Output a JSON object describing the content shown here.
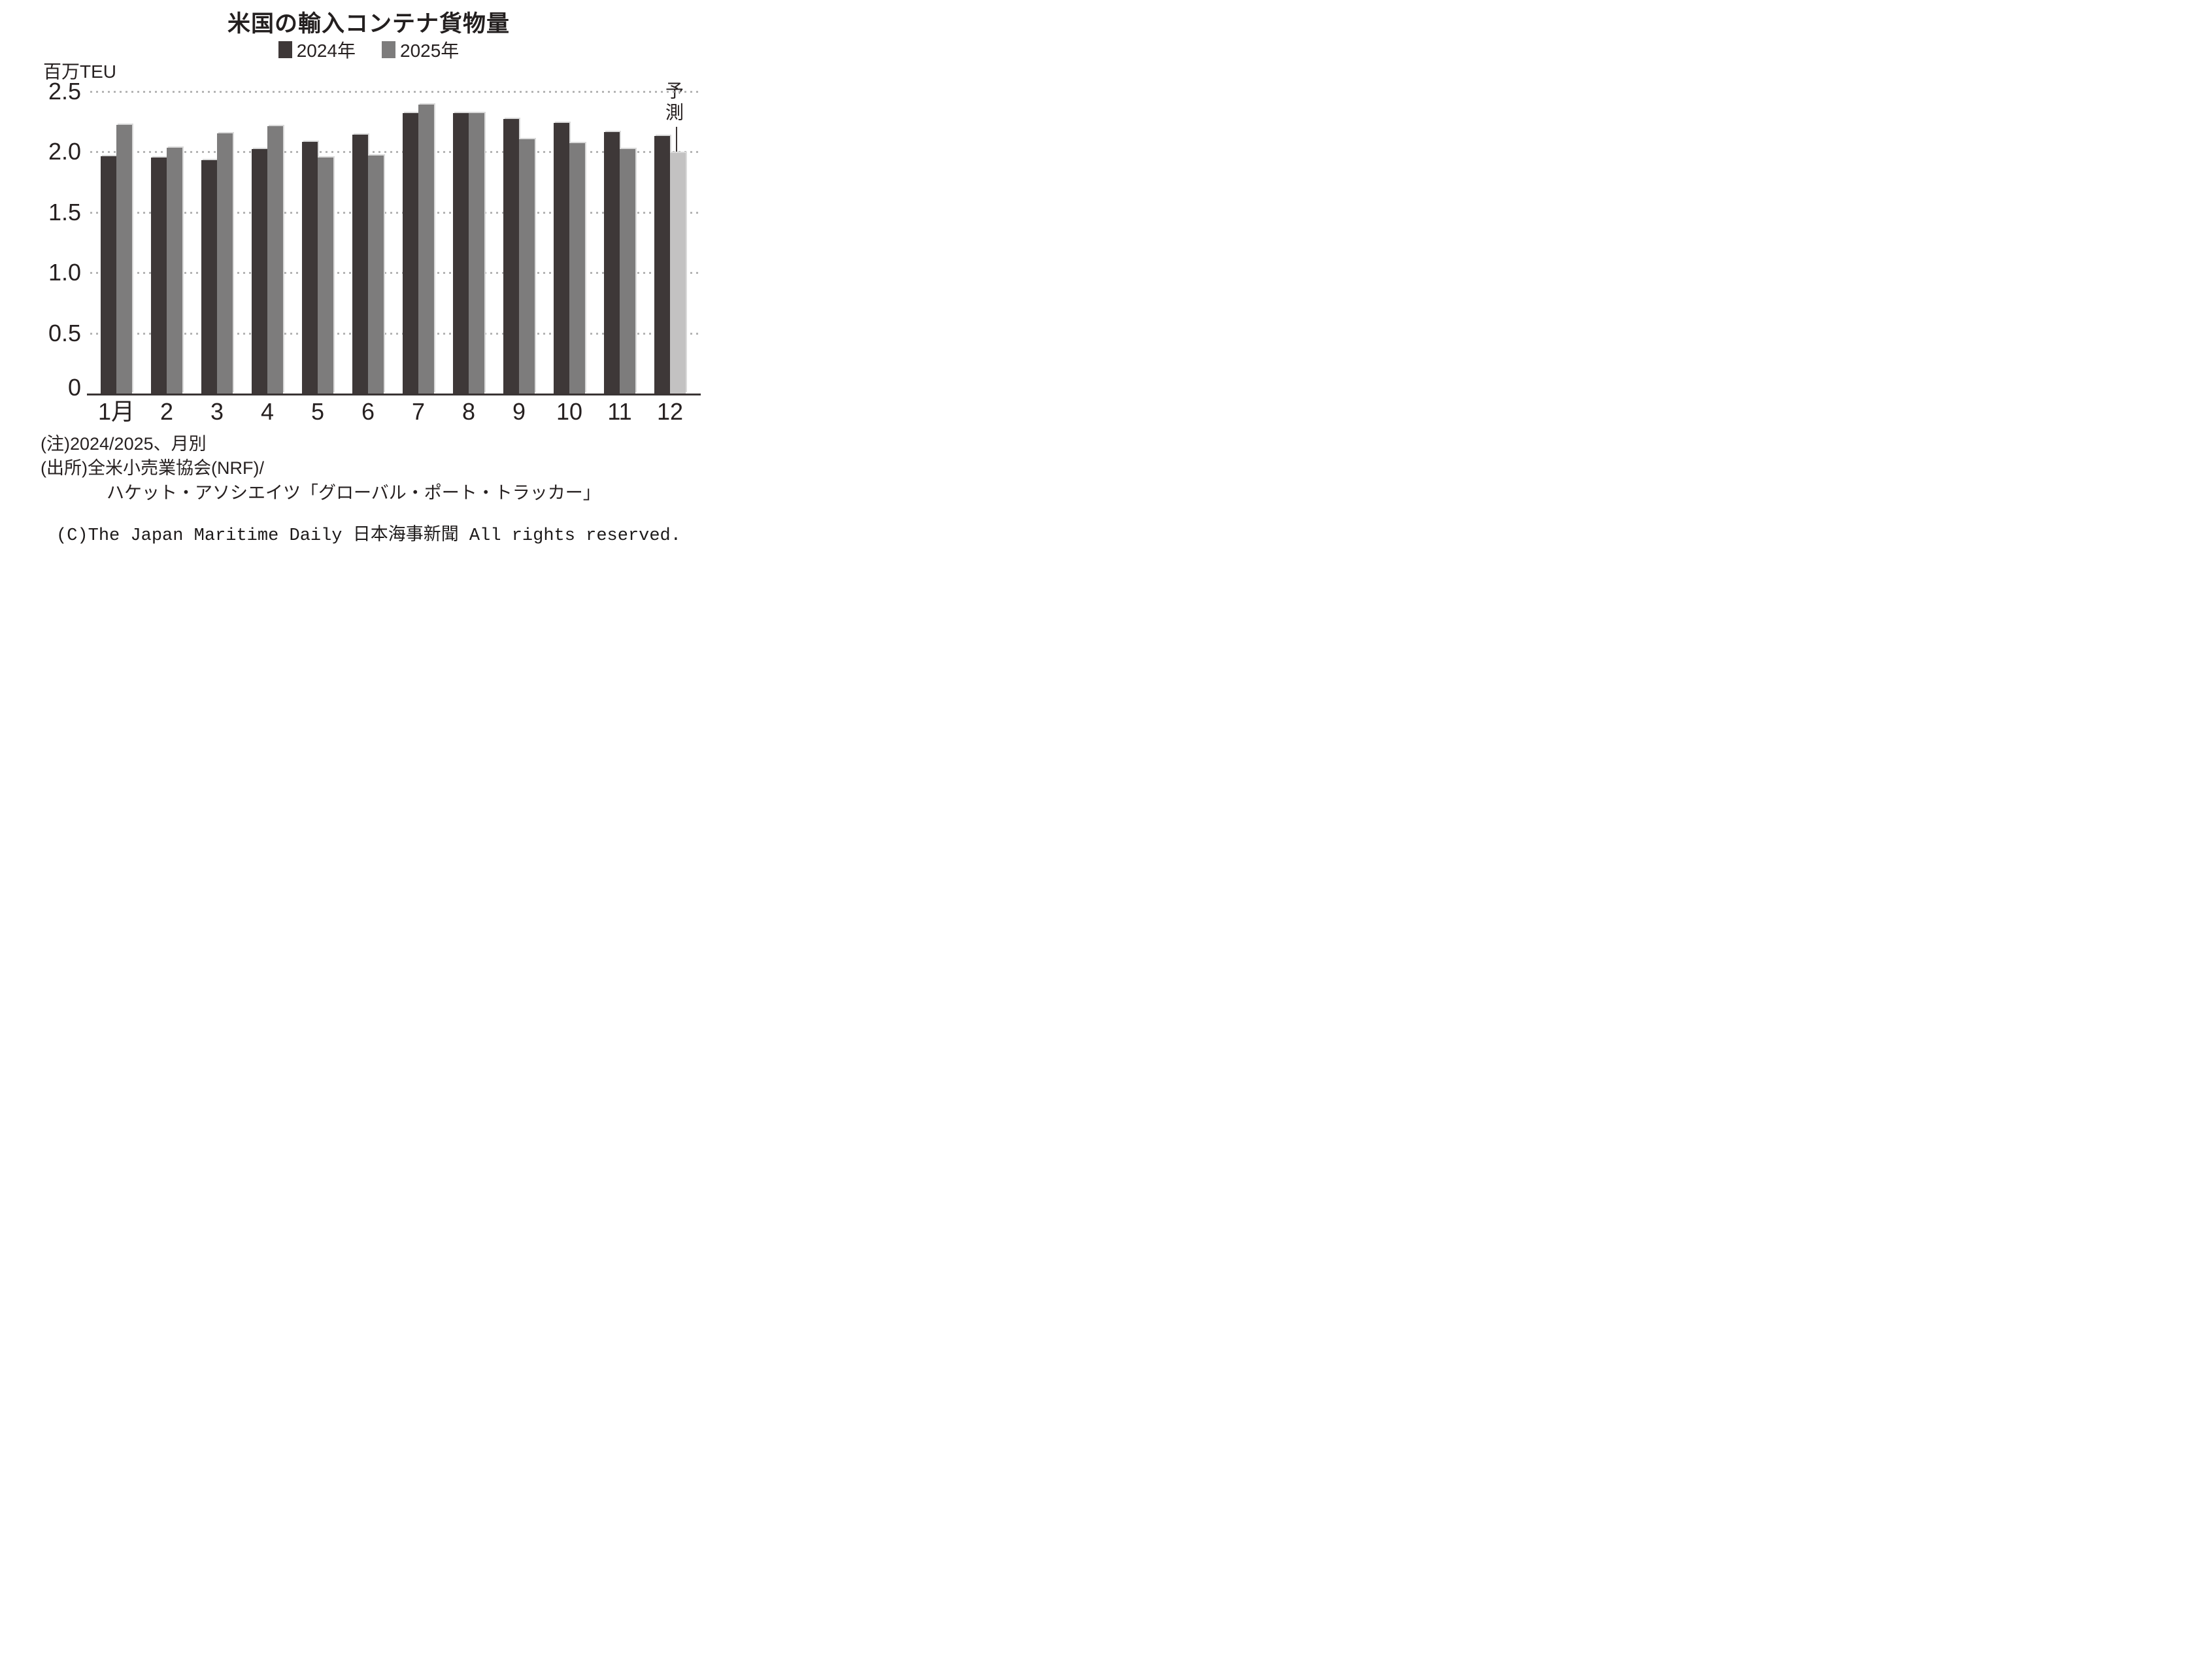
{
  "title": "米国の輸入コンテナ貨物量",
  "legend": [
    {
      "label": "2024年",
      "color": "#3e3838"
    },
    {
      "label": "2025年",
      "color": "#7d7c7c"
    }
  ],
  "y_axis": {
    "unit_label": "百万TEU",
    "ticks": [
      "2.5",
      "2.0",
      "1.5",
      "1.0",
      "0.5",
      "0"
    ]
  },
  "annotation": {
    "label": "予測"
  },
  "notes": [
    "(注)2024/2025、月別",
    "(出所)全米小売業協会(NRF)/",
    "ハケット・アソシエイツ「グローバル・ポート・トラッカー」"
  ],
  "copyright": "(C)The Japan Maritime Daily 日本海事新聞 All rights reserved.",
  "colors": {
    "bar_2024": "#3e3838",
    "bar_2025": "#7d7c7c",
    "bar_forecast": "#c3c2c2",
    "gridline": "#b4b4b4",
    "axis": "#3a3434",
    "text": "#262020"
  },
  "chart_data": {
    "type": "bar",
    "title": "米国の輸入コンテナ貨物量",
    "ylabel": "百万TEU",
    "xlabel": "月",
    "ylim": [
      0,
      2.5
    ],
    "yticks": [
      0,
      0.5,
      1.0,
      1.5,
      2.0,
      2.5
    ],
    "grid": "horizontal-dotted",
    "legend_position": "top-center",
    "categories": [
      "1月",
      "2",
      "3",
      "4",
      "5",
      "6",
      "7",
      "8",
      "9",
      "10",
      "11",
      "12"
    ],
    "series": [
      {
        "name": "2024年",
        "color": "#3e3838",
        "values": [
          1.96,
          1.95,
          1.93,
          2.02,
          2.08,
          2.14,
          2.32,
          2.32,
          2.27,
          2.24,
          2.16,
          2.13
        ]
      },
      {
        "name": "2025年",
        "color": "#7d7c7c",
        "values": [
          2.22,
          2.03,
          2.15,
          2.21,
          1.95,
          1.97,
          2.39,
          2.32,
          2.1,
          2.07,
          2.02,
          1.99
        ],
        "forecast_last": true,
        "forecast_color": "#c3c2c2"
      }
    ],
    "annotation": {
      "text": "予測",
      "applies_to": "2025年 12月"
    }
  }
}
